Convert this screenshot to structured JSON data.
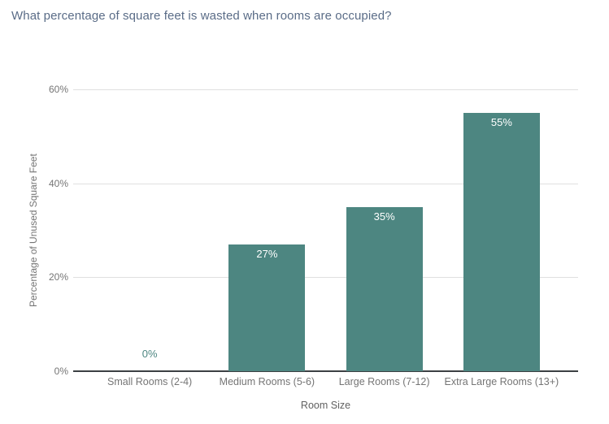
{
  "chart_data": {
    "type": "bar",
    "title": "What percentage of square feet is wasted when rooms are occupied?",
    "xlabel": "Room Size",
    "ylabel": "Percentage of Unused Square Feet",
    "categories": [
      "Small Rooms (2-4)",
      "Medium Rooms (5-6)",
      "Large Rooms (7-12)",
      "Extra Large Rooms (13+)"
    ],
    "values": [
      0,
      27,
      35,
      55
    ],
    "value_labels": [
      "0%",
      "27%",
      "35%",
      "55%"
    ],
    "yticks": [
      0,
      20,
      40,
      60
    ],
    "ytick_labels": [
      "0%",
      "20%",
      "40%",
      "60%"
    ],
    "ylim": [
      0,
      60
    ],
    "grid": true,
    "legend": "none",
    "colors": {
      "bar": "#4d8681",
      "gridline": "#e0e0e0",
      "axis_line": "#3c4043",
      "tick_text": "#757575",
      "axis_title_text": "#616161",
      "chart_title_text": "#5a6c87",
      "bar_value_label": "#ffffff",
      "zero_value_label": "#4d8681"
    }
  }
}
